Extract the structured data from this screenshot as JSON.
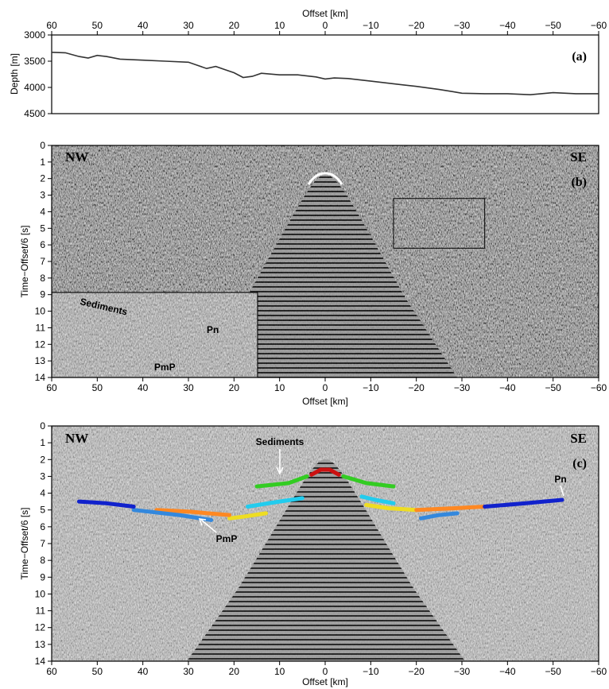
{
  "chart_data": [
    {
      "type": "line",
      "panel": "(a)",
      "xlabel": "Offset [km]",
      "ylabel": "Depth [m]",
      "xlim": [
        60,
        -60
      ],
      "ylim": [
        3000,
        4500
      ],
      "y_inverted": true,
      "x_ticks": [
        "60",
        "50",
        "40",
        "30",
        "20",
        "10",
        "0",
        "−10",
        "−20",
        "−30",
        "−40",
        "−50",
        "−60"
      ],
      "y_ticks": [
        "3000",
        "3500",
        "4000",
        "4500"
      ],
      "series": [
        {
          "color": "#333333",
          "x": [
            60,
            57,
            54,
            52,
            50,
            48,
            45,
            40,
            35,
            30,
            28,
            26,
            24,
            22,
            20,
            18,
            16,
            14,
            10,
            6,
            2,
            0,
            -2,
            -5,
            -10,
            -15,
            -20,
            -25,
            -28,
            -30,
            -35,
            -40,
            -45,
            -50,
            -55,
            -60
          ],
          "y": [
            3330,
            3340,
            3410,
            3440,
            3390,
            3410,
            3460,
            3480,
            3500,
            3520,
            3580,
            3640,
            3600,
            3660,
            3720,
            3810,
            3790,
            3730,
            3760,
            3760,
            3800,
            3840,
            3820,
            3830,
            3880,
            3930,
            3980,
            4040,
            4080,
            4110,
            4120,
            4120,
            4140,
            4100,
            4120,
            4120
          ]
        }
      ]
    },
    {
      "type": "heatmap",
      "panel": "(b)",
      "xlabel": "Offset [km]",
      "ylabel": "Time−Offset/6 [s]",
      "xlim": [
        60,
        -60
      ],
      "ylim": [
        0,
        14
      ],
      "y_inverted": true,
      "x_ticks": [
        "60",
        "50",
        "40",
        "30",
        "20",
        "10",
        "0",
        "−10",
        "−20",
        "−30",
        "−40",
        "−50",
        "−60"
      ],
      "y_ticks": [
        "0",
        "1",
        "2",
        "3",
        "4",
        "5",
        "6",
        "7",
        "8",
        "9",
        "10",
        "11",
        "12",
        "13",
        "14"
      ],
      "labels": {
        "left": "NW",
        "right": "SE"
      },
      "zoom_box": {
        "x": [
          -15,
          -35
        ],
        "y": [
          3.2,
          6.2
        ]
      },
      "inset_labels": [
        "Sediments",
        "Pn",
        "PmP"
      ]
    },
    {
      "type": "heatmap",
      "panel": "(c)",
      "xlabel": "Offset [km]",
      "ylabel": "Time−Offset/6 [s]",
      "xlim": [
        60,
        -60
      ],
      "ylim": [
        0,
        14
      ],
      "y_inverted": true,
      "x_ticks": [
        "60",
        "50",
        "40",
        "30",
        "20",
        "10",
        "0",
        "−10",
        "−20",
        "−30",
        "−40",
        "−50",
        "−60"
      ],
      "y_ticks": [
        "0",
        "1",
        "2",
        "3",
        "4",
        "5",
        "6",
        "7",
        "8",
        "9",
        "10",
        "11",
        "12",
        "13",
        "14"
      ],
      "labels": {
        "left": "NW",
        "right": "SE"
      },
      "annotations": [
        "Sediments",
        "Pn",
        "PmP"
      ],
      "picks": [
        {
          "color": "#cc1111",
          "x": [
            3,
            1,
            0,
            -1,
            -3
          ],
          "y": [
            2.9,
            2.6,
            2.6,
            2.6,
            2.9
          ]
        },
        {
          "color": "#33cc22",
          "x": [
            15,
            8,
            4
          ],
          "y": [
            3.6,
            3.4,
            3.0
          ]
        },
        {
          "color": "#33cc22",
          "x": [
            -4,
            -9,
            -15
          ],
          "y": [
            3.0,
            3.4,
            3.6
          ]
        },
        {
          "color": "#22ccee",
          "x": [
            17,
            10,
            5
          ],
          "y": [
            4.8,
            4.5,
            4.3
          ]
        },
        {
          "color": "#22ccee",
          "x": [
            -8,
            -11,
            -15
          ],
          "y": [
            4.2,
            4.4,
            4.6
          ]
        },
        {
          "color": "#eedd22",
          "x": [
            21,
            18,
            13
          ],
          "y": [
            5.5,
            5.4,
            5.2
          ]
        },
        {
          "color": "#eedd22",
          "x": [
            -9,
            -14,
            -20
          ],
          "y": [
            4.7,
            4.9,
            5.0
          ]
        },
        {
          "color": "#ff8822",
          "x": [
            37,
            30,
            21
          ],
          "y": [
            5.0,
            5.1,
            5.3
          ]
        },
        {
          "color": "#ff8822",
          "x": [
            -20,
            -28,
            -35
          ],
          "y": [
            5.0,
            4.9,
            4.8
          ]
        },
        {
          "color": "#3388dd",
          "x": [
            42,
            32,
            25
          ],
          "y": [
            5.0,
            5.3,
            5.6
          ]
        },
        {
          "color": "#3388dd",
          "x": [
            -21,
            -25,
            -29
          ],
          "y": [
            5.5,
            5.3,
            5.2
          ]
        },
        {
          "color": "#1122cc",
          "x": [
            54,
            48,
            42
          ],
          "y": [
            4.5,
            4.6,
            4.8
          ]
        },
        {
          "color": "#1122cc",
          "x": [
            -35,
            -44,
            -52
          ],
          "y": [
            4.8,
            4.6,
            4.4
          ]
        }
      ]
    }
  ]
}
